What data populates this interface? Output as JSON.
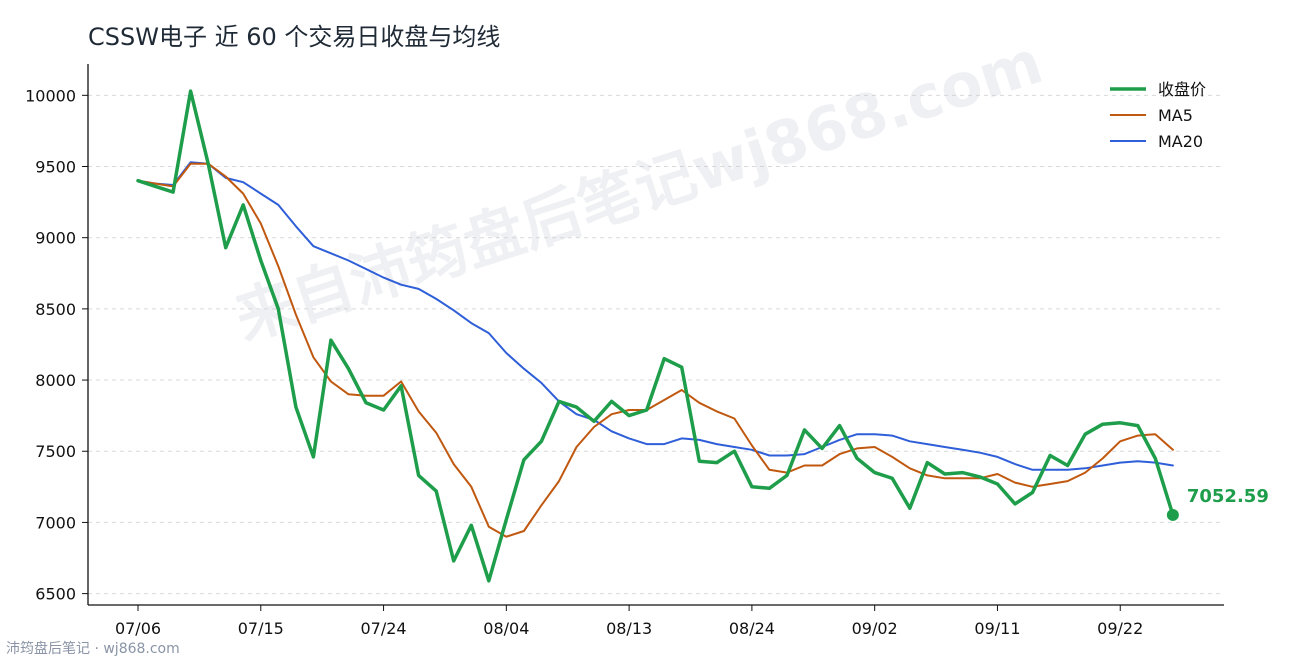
{
  "chart_data": {
    "type": "line",
    "title": "CSSW电子 近 60 个交易日收盘与均线",
    "ylim": [
      6420,
      10220
    ],
    "yticks": [
      6500,
      7000,
      7500,
      8000,
      8500,
      9000,
      9500,
      10000
    ],
    "ytick_labels": [
      "6500",
      "7000",
      "7500",
      "8000",
      "8500",
      "9000",
      "9500",
      "10000"
    ],
    "xtick_index": [
      0,
      7,
      14,
      21,
      28,
      35,
      42,
      49,
      56
    ],
    "xtick_labels": [
      "07/06",
      "07/15",
      "07/24",
      "08/04",
      "08/13",
      "08/24",
      "09/02",
      "09/11",
      "09/22"
    ],
    "grid": true,
    "legend_position": "top-right",
    "series": [
      {
        "name": "收盘价",
        "color": "#1e9e4a",
        "values": [
          9400,
          9360,
          9320,
          10030,
          9520,
          8930,
          9230,
          8840,
          8500,
          7810,
          7460,
          8280,
          8080,
          7840,
          7790,
          7960,
          7330,
          7220,
          6730,
          6980,
          6590,
          7020,
          7440,
          7570,
          7850,
          7810,
          7710,
          7850,
          7750,
          7790,
          8150,
          8090,
          7430,
          7420,
          7500,
          7250,
          7240,
          7330,
          7650,
          7520,
          7680,
          7450,
          7350,
          7310,
          7100,
          7420,
          7340,
          7350,
          7320,
          7270,
          7130,
          7210,
          7470,
          7400,
          7620,
          7690,
          7700,
          7680,
          7450,
          7052.59
        ]
      },
      {
        "name": "MA5",
        "color": "#c0580f",
        "values": [
          9400,
          9380,
          9360,
          9520,
          9520,
          9430,
          9310,
          9100,
          8800,
          8460,
          8160,
          7990,
          7900,
          7890,
          7890,
          7990,
          7780,
          7630,
          7410,
          7250,
          6970,
          6900,
          6940,
          7120,
          7290,
          7530,
          7670,
          7760,
          7790,
          7790,
          7860,
          7930,
          7840,
          7780,
          7730,
          7540,
          7370,
          7350,
          7400,
          7400,
          7480,
          7520,
          7530,
          7460,
          7380,
          7330,
          7310,
          7310,
          7310,
          7340,
          7280,
          7250,
          7270,
          7290,
          7350,
          7450,
          7570,
          7610,
          7620,
          7510
        ]
      },
      {
        "name": "MA20",
        "color": "#2f5fd8",
        "values": [
          9400,
          9380,
          9370,
          9530,
          9520,
          9420,
          9390,
          9310,
          9230,
          9080,
          8940,
          8890,
          8840,
          8780,
          8720,
          8670,
          8640,
          8570,
          8490,
          8400,
          8330,
          8190,
          8080,
          7980,
          7850,
          7760,
          7720,
          7640,
          7590,
          7550,
          7550,
          7590,
          7580,
          7550,
          7530,
          7510,
          7470,
          7470,
          7480,
          7530,
          7580,
          7620,
          7620,
          7610,
          7570,
          7550,
          7530,
          7510,
          7490,
          7460,
          7410,
          7370,
          7370,
          7370,
          7380,
          7400,
          7420,
          7430,
          7420,
          7400
        ]
      }
    ],
    "end_label": "7052.59"
  },
  "watermark_text": "来自沛筠盘后笔记wj868.com",
  "footer_text": "沛筠盘后笔记 · wj868.com"
}
